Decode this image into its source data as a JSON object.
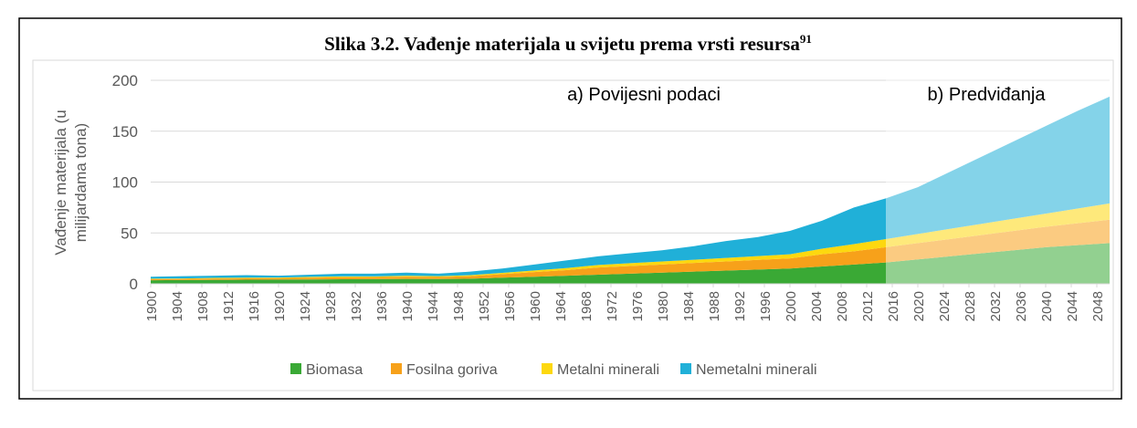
{
  "chart_data": {
    "type": "stacked_area",
    "title": "Slika 3.2. Vađenje materijala u svijetu prema vrsti resursa",
    "title_footnote": "91",
    "ylabel": [
      "Vađenje materijala (u",
      "milijardama tona)"
    ],
    "annotations": [
      "a) Povijesni podaci",
      "b) Predviđanja"
    ],
    "projection_from": 2015,
    "x": [
      1900,
      1905,
      1910,
      1915,
      1920,
      1925,
      1930,
      1935,
      1940,
      1945,
      1950,
      1955,
      1960,
      1965,
      1970,
      1975,
      1980,
      1985,
      1990,
      1995,
      2000,
      2005,
      2010,
      2015,
      2020,
      2025,
      2030,
      2035,
      2040,
      2045,
      2050
    ],
    "series": [
      {
        "name": "Biomasa",
        "color": "#3aa935",
        "values": [
          3.5,
          3.7,
          3.9,
          4,
          4.1,
          4.3,
          4.5,
          4.6,
          4.8,
          4.7,
          5,
          6,
          7,
          8,
          9,
          10,
          11,
          12,
          13,
          14,
          15,
          17,
          19,
          21,
          24,
          27,
          30,
          33,
          36,
          38,
          40
        ]
      },
      {
        "name": "Fosilna goriva",
        "color": "#f7a11a",
        "values": [
          1,
          1.1,
          1.3,
          1.4,
          1.5,
          1.8,
          2,
          2,
          2.3,
          2,
          2.5,
          3.5,
          4.5,
          5.5,
          7,
          7.5,
          8,
          8.5,
          9,
          9.5,
          10,
          12,
          13,
          15,
          16,
          17,
          18,
          19,
          20,
          21.5,
          23
        ]
      },
      {
        "name": "Metalni minerali",
        "color": "#fdd80f",
        "values": [
          0.5,
          0.5,
          0.6,
          0.6,
          0.6,
          0.7,
          0.8,
          0.7,
          0.9,
          0.8,
          1,
          1.3,
          1.6,
          2,
          2.5,
          2.8,
          3,
          3.2,
          3.5,
          3.7,
          4,
          5.5,
          7,
          8,
          9,
          10,
          11,
          12,
          13,
          14.5,
          16
        ]
      },
      {
        "name": "Nemetalni minerali",
        "color": "#20b0d8",
        "values": [
          2,
          2.2,
          2.2,
          2.5,
          1.8,
          2.2,
          2.7,
          2.7,
          3,
          2.5,
          3.5,
          4.2,
          5.9,
          7.5,
          8.5,
          9.7,
          11,
          13.3,
          16.5,
          18.8,
          23,
          27.5,
          36,
          40,
          46,
          56,
          66,
          76,
          86,
          96,
          105
        ]
      }
    ],
    "xlim": [
      1900,
      2050
    ],
    "xticks": [
      1900,
      1904,
      1908,
      1912,
      1916,
      1920,
      1924,
      1928,
      1932,
      1936,
      1940,
      1944,
      1948,
      1952,
      1956,
      1960,
      1964,
      1968,
      1972,
      1976,
      1980,
      1984,
      1988,
      1992,
      1996,
      2000,
      2004,
      2008,
      2012,
      2016,
      2020,
      2024,
      2028,
      2032,
      2036,
      2040,
      2044,
      2048
    ],
    "ylim": [
      0,
      200
    ],
    "yticks": [
      0,
      50,
      100,
      150,
      200
    ],
    "grid": true,
    "legend": "bottom"
  }
}
